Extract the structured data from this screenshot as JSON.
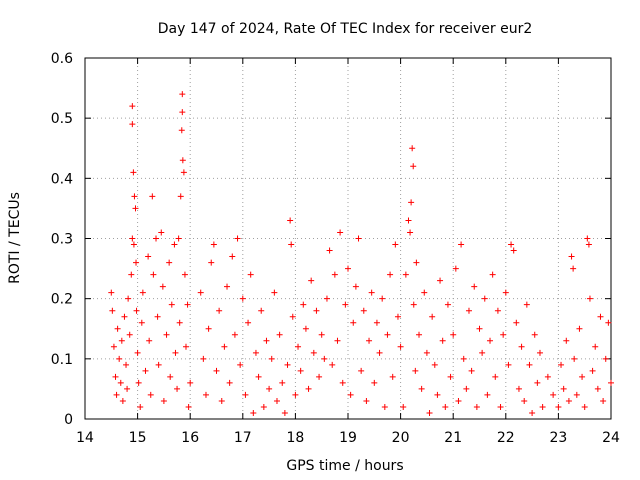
{
  "chart_data": {
    "type": "scatter",
    "title": "Day 147 of 2024, Rate Of TEC Index for receiver eur2",
    "xlabel": "GPS time / hours",
    "ylabel": "ROTI / TECUs",
    "xlim": [
      14,
      24
    ],
    "ylim": [
      0,
      0.6
    ],
    "x_ticks": [
      14,
      15,
      16,
      17,
      18,
      19,
      20,
      21,
      22,
      23,
      24
    ],
    "y_ticks": [
      0,
      0.1,
      0.2,
      0.3,
      0.4,
      0.5,
      0.6
    ],
    "y_tick_labels": [
      "0",
      "0.1",
      "0.2",
      "0.3",
      "0.4",
      "0.5",
      "0.6"
    ],
    "grid": true,
    "marker": "plus",
    "color": "#ff0000",
    "series": [
      {
        "points": [
          [
            14.5,
            0.21
          ],
          [
            14.52,
            0.18
          ],
          [
            14.55,
            0.12
          ],
          [
            14.58,
            0.07
          ],
          [
            14.6,
            0.04
          ],
          [
            14.62,
            0.15
          ],
          [
            14.65,
            0.1
          ],
          [
            14.68,
            0.06
          ],
          [
            14.7,
            0.13
          ],
          [
            14.72,
            0.03
          ],
          [
            14.75,
            0.17
          ],
          [
            14.78,
            0.09
          ],
          [
            14.8,
            0.05
          ],
          [
            14.82,
            0.2
          ],
          [
            14.85,
            0.14
          ],
          [
            14.88,
            0.24
          ],
          [
            14.9,
            0.3
          ],
          [
            14.9,
            0.52
          ],
          [
            14.9,
            0.49
          ],
          [
            14.92,
            0.41
          ],
          [
            14.94,
            0.37
          ],
          [
            14.96,
            0.35
          ],
          [
            14.93,
            0.29
          ],
          [
            14.97,
            0.26
          ],
          [
            14.98,
            0.18
          ],
          [
            15.0,
            0.11
          ],
          [
            15.02,
            0.06
          ],
          [
            15.05,
            0.02
          ],
          [
            15.08,
            0.16
          ],
          [
            15.1,
            0.21
          ],
          [
            15.15,
            0.08
          ],
          [
            15.2,
            0.27
          ],
          [
            15.22,
            0.13
          ],
          [
            15.25,
            0.04
          ],
          [
            15.28,
            0.37
          ],
          [
            15.3,
            0.24
          ],
          [
            15.35,
            0.3
          ],
          [
            15.38,
            0.17
          ],
          [
            15.4,
            0.09
          ],
          [
            15.45,
            0.31
          ],
          [
            15.48,
            0.22
          ],
          [
            15.5,
            0.03
          ],
          [
            15.55,
            0.14
          ],
          [
            15.6,
            0.26
          ],
          [
            15.62,
            0.07
          ],
          [
            15.65,
            0.19
          ],
          [
            15.7,
            0.29
          ],
          [
            15.72,
            0.11
          ],
          [
            15.75,
            0.05
          ],
          [
            15.78,
            0.3
          ],
          [
            15.8,
            0.16
          ],
          [
            15.82,
            0.37
          ],
          [
            15.84,
            0.48
          ],
          [
            15.85,
            0.54
          ],
          [
            15.85,
            0.51
          ],
          [
            15.86,
            0.43
          ],
          [
            15.88,
            0.41
          ],
          [
            15.9,
            0.24
          ],
          [
            15.92,
            0.12
          ],
          [
            15.95,
            0.19
          ],
          [
            15.97,
            0.02
          ],
          [
            16.0,
            0.06
          ],
          [
            16.2,
            0.21
          ],
          [
            16.25,
            0.1
          ],
          [
            16.3,
            0.04
          ],
          [
            16.35,
            0.15
          ],
          [
            16.4,
            0.26
          ],
          [
            16.45,
            0.29
          ],
          [
            16.5,
            0.08
          ],
          [
            16.55,
            0.18
          ],
          [
            16.6,
            0.03
          ],
          [
            16.65,
            0.12
          ],
          [
            16.7,
            0.22
          ],
          [
            16.75,
            0.06
          ],
          [
            16.8,
            0.27
          ],
          [
            16.85,
            0.14
          ],
          [
            16.9,
            0.3
          ],
          [
            16.95,
            0.09
          ],
          [
            17.0,
            0.2
          ],
          [
            17.05,
            0.04
          ],
          [
            17.1,
            0.16
          ],
          [
            17.15,
            0.24
          ],
          [
            17.2,
            0.01
          ],
          [
            17.25,
            0.11
          ],
          [
            17.3,
            0.07
          ],
          [
            17.35,
            0.18
          ],
          [
            17.4,
            0.02
          ],
          [
            17.45,
            0.13
          ],
          [
            17.5,
            0.05
          ],
          [
            17.55,
            0.1
          ],
          [
            17.6,
            0.21
          ],
          [
            17.65,
            0.03
          ],
          [
            17.7,
            0.14
          ],
          [
            17.75,
            0.06
          ],
          [
            17.8,
            0.01
          ],
          [
            17.85,
            0.09
          ],
          [
            17.9,
            0.33
          ],
          [
            17.92,
            0.29
          ],
          [
            17.95,
            0.17
          ],
          [
            18.0,
            0.04
          ],
          [
            18.05,
            0.12
          ],
          [
            18.1,
            0.08
          ],
          [
            18.15,
            0.19
          ],
          [
            18.2,
            0.15
          ],
          [
            18.25,
            0.05
          ],
          [
            18.3,
            0.23
          ],
          [
            18.35,
            0.11
          ],
          [
            18.4,
            0.18
          ],
          [
            18.45,
            0.07
          ],
          [
            18.5,
            0.14
          ],
          [
            18.55,
            0.1
          ],
          [
            18.6,
            0.2
          ],
          [
            18.65,
            0.28
          ],
          [
            18.7,
            0.09
          ],
          [
            18.75,
            0.24
          ],
          [
            18.8,
            0.13
          ],
          [
            18.85,
            0.31
          ],
          [
            18.9,
            0.06
          ],
          [
            18.95,
            0.19
          ],
          [
            19.0,
            0.25
          ],
          [
            19.05,
            0.04
          ],
          [
            19.1,
            0.16
          ],
          [
            19.15,
            0.22
          ],
          [
            19.2,
            0.3
          ],
          [
            19.25,
            0.08
          ],
          [
            19.3,
            0.18
          ],
          [
            19.35,
            0.03
          ],
          [
            19.4,
            0.13
          ],
          [
            19.45,
            0.21
          ],
          [
            19.5,
            0.06
          ],
          [
            19.55,
            0.16
          ],
          [
            19.6,
            0.11
          ],
          [
            19.65,
            0.2
          ],
          [
            19.7,
            0.02
          ],
          [
            19.75,
            0.14
          ],
          [
            19.8,
            0.24
          ],
          [
            19.85,
            0.07
          ],
          [
            19.9,
            0.29
          ],
          [
            19.95,
            0.17
          ],
          [
            20.0,
            0.12
          ],
          [
            20.05,
            0.02
          ],
          [
            20.1,
            0.24
          ],
          [
            20.15,
            0.33
          ],
          [
            20.18,
            0.31
          ],
          [
            20.2,
            0.36
          ],
          [
            20.22,
            0.45
          ],
          [
            20.24,
            0.42
          ],
          [
            20.25,
            0.19
          ],
          [
            20.28,
            0.08
          ],
          [
            20.3,
            0.26
          ],
          [
            20.35,
            0.14
          ],
          [
            20.4,
            0.05
          ],
          [
            20.45,
            0.21
          ],
          [
            20.5,
            0.11
          ],
          [
            20.55,
            0.01
          ],
          [
            20.6,
            0.17
          ],
          [
            20.65,
            0.09
          ],
          [
            20.7,
            0.04
          ],
          [
            20.75,
            0.23
          ],
          [
            20.8,
            0.13
          ],
          [
            20.85,
            0.02
          ],
          [
            20.9,
            0.19
          ],
          [
            20.95,
            0.07
          ],
          [
            21.0,
            0.14
          ],
          [
            21.05,
            0.25
          ],
          [
            21.1,
            0.03
          ],
          [
            21.15,
            0.29
          ],
          [
            21.2,
            0.1
          ],
          [
            21.25,
            0.05
          ],
          [
            21.3,
            0.18
          ],
          [
            21.35,
            0.08
          ],
          [
            21.4,
            0.22
          ],
          [
            21.45,
            0.02
          ],
          [
            21.5,
            0.15
          ],
          [
            21.55,
            0.11
          ],
          [
            21.6,
            0.2
          ],
          [
            21.65,
            0.04
          ],
          [
            21.7,
            0.13
          ],
          [
            21.75,
            0.24
          ],
          [
            21.8,
            0.07
          ],
          [
            21.85,
            0.18
          ],
          [
            21.9,
            0.02
          ],
          [
            21.95,
            0.14
          ],
          [
            22.0,
            0.21
          ],
          [
            22.05,
            0.09
          ],
          [
            22.1,
            0.29
          ],
          [
            22.15,
            0.28
          ],
          [
            22.2,
            0.16
          ],
          [
            22.25,
            0.05
          ],
          [
            22.3,
            0.12
          ],
          [
            22.35,
            0.03
          ],
          [
            22.4,
            0.19
          ],
          [
            22.45,
            0.09
          ],
          [
            22.5,
            0.01
          ],
          [
            22.55,
            0.14
          ],
          [
            22.6,
            0.06
          ],
          [
            22.65,
            0.11
          ],
          [
            22.7,
            0.02
          ],
          [
            22.8,
            0.07
          ],
          [
            22.9,
            0.04
          ],
          [
            23.0,
            0.02
          ],
          [
            23.05,
            0.09
          ],
          [
            23.1,
            0.05
          ],
          [
            23.15,
            0.13
          ],
          [
            23.2,
            0.03
          ],
          [
            23.25,
            0.27
          ],
          [
            23.28,
            0.25
          ],
          [
            23.3,
            0.1
          ],
          [
            23.35,
            0.04
          ],
          [
            23.4,
            0.15
          ],
          [
            23.45,
            0.07
          ],
          [
            23.5,
            0.02
          ],
          [
            23.55,
            0.3
          ],
          [
            23.58,
            0.29
          ],
          [
            23.6,
            0.2
          ],
          [
            23.65,
            0.08
          ],
          [
            23.7,
            0.12
          ],
          [
            23.75,
            0.05
          ],
          [
            23.8,
            0.17
          ],
          [
            23.85,
            0.03
          ],
          [
            23.9,
            0.1
          ],
          [
            23.95,
            0.16
          ],
          [
            24.0,
            0.06
          ]
        ]
      }
    ]
  }
}
